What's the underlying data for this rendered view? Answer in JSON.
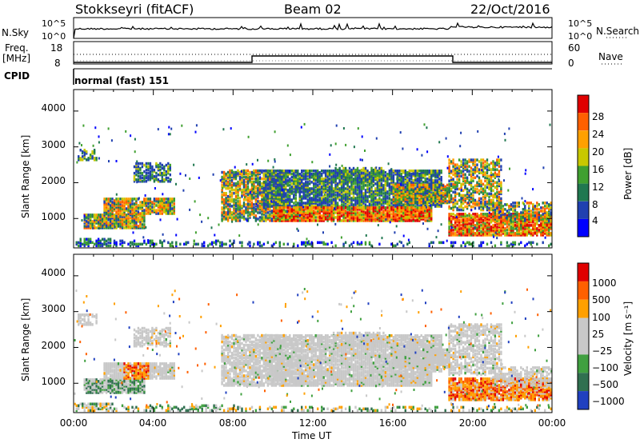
{
  "header": {
    "station": "Stokkseyri (fitACF)",
    "beam": "Beam 02",
    "date": "22/Oct/2016"
  },
  "top_panels": {
    "nsky_label": "N.Sky",
    "nsky_ticks": [
      "10^5",
      "10^0"
    ],
    "nsearch_label": "N.Search",
    "nsearch_ticks": [
      "10^5",
      "10^0"
    ],
    "freq_label": "Freq.",
    "freq_unit": "[MHz]",
    "freq_ticks": [
      "18",
      "8"
    ],
    "nave_label": "Nave",
    "nave_ticks": [
      "60",
      "0"
    ],
    "cpid_label": "CPID",
    "cpid_value": "normal (fast) 151"
  },
  "chart_data": [
    {
      "type": "heatmap",
      "name": "power",
      "ylabel": "Slant Range [km]",
      "xlabel": "",
      "ylim": [
        180,
        4600
      ],
      "yticks": [
        "4000",
        "3000",
        "2000",
        "1000"
      ],
      "colorbar_label": "Power [dB]",
      "colorbar_ticks": [
        "28",
        "24",
        "20",
        "16",
        "12",
        "8",
        "4"
      ],
      "colorbar_colors": [
        "#0000ff",
        "#2040b0",
        "#207850",
        "#40a030",
        "#c8c800",
        "#ffa000",
        "#ff6000",
        "#e00000"
      ]
    },
    {
      "type": "heatmap",
      "name": "velocity",
      "ylabel": "Slant Range [km]",
      "xlabel": "Time UT",
      "ylim": [
        180,
        4600
      ],
      "yticks": [
        "4000",
        "3000",
        "2000",
        "1000"
      ],
      "xticks": [
        "00:00",
        "04:00",
        "08:00",
        "12:00",
        "16:00",
        "20:00",
        "00:00"
      ],
      "colorbar_label": "Velocity [m s⁻¹]",
      "colorbar_ticks": [
        "1000",
        "500",
        "100",
        "25",
        "−25",
        "−100",
        "−500",
        "−1000"
      ],
      "colorbar_colors": [
        "#2040c0",
        "#307050",
        "#40a040",
        "#c8c8c8",
        "#c8c8c8",
        "#ffa000",
        "#ff6000",
        "#e00000"
      ]
    }
  ]
}
